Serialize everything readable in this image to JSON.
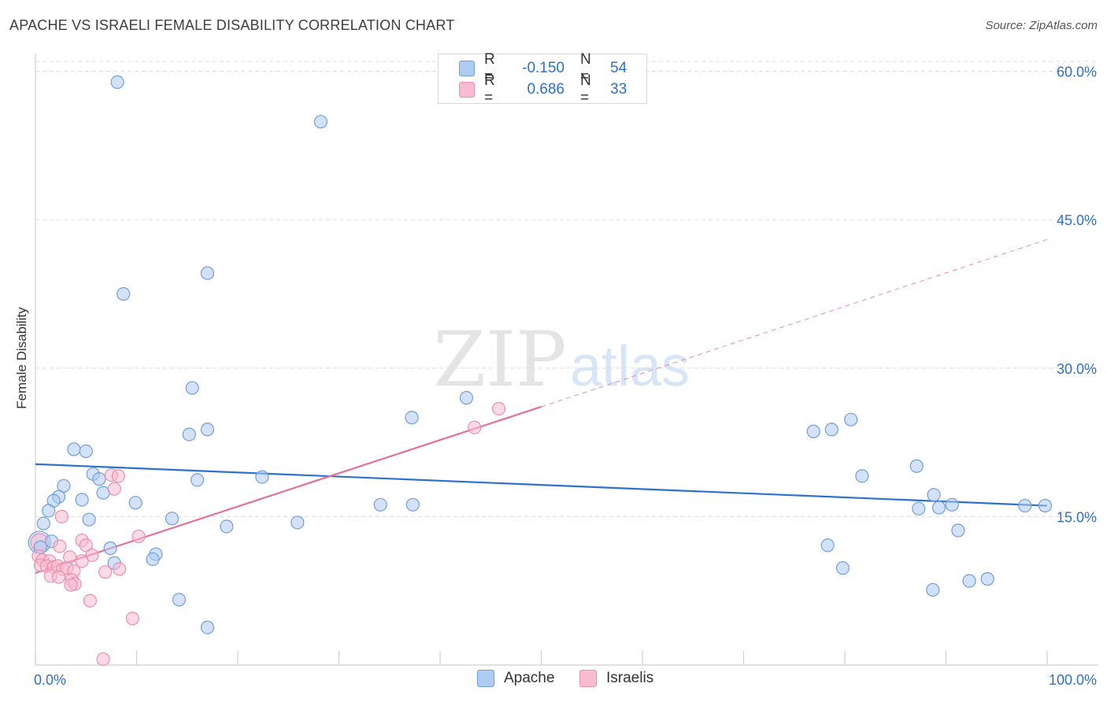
{
  "header": {
    "title": "APACHE VS ISRAELI FEMALE DISABILITY CORRELATION CHART",
    "source": "Source: ZipAtlas.com"
  },
  "legend": {
    "apache": {
      "r_label": "R =",
      "r_value": "-0.150",
      "n_label": "N =",
      "n_value": "54"
    },
    "israeli": {
      "r_label": "R =",
      "r_value": "0.686",
      "n_label": "N =",
      "n_value": "33"
    }
  },
  "bottom_legend": {
    "apache": "Apache",
    "israelis": "Israelis"
  },
  "watermark": {
    "zip": "ZIP",
    "atlas": "atlas"
  },
  "colors": {
    "apache_fill": "#aecbf2",
    "apache_stroke": "#6f9fde",
    "apache_line": "#2b72cc",
    "israeli_fill": "#f7bcd0",
    "israeli_stroke": "#ec8fae",
    "israeli_line": "#e4709a",
    "axis_text": "#2e6fcc"
  },
  "chart_data": {
    "type": "scatter",
    "title": "APACHE VS ISRAELI FEMALE DISABILITY CORRELATION CHART",
    "xlabel": "",
    "ylabel": "Female Disability",
    "xlim": [
      0,
      100
    ],
    "ylim": [
      0,
      61
    ],
    "x_tick_labels": [
      "0.0%",
      "100.0%"
    ],
    "y_ticks": [
      15,
      30,
      45,
      60
    ],
    "y_tick_labels": [
      "15.0%",
      "30.0%",
      "45.0%",
      "60.0%"
    ],
    "grid": true,
    "legend_position": "top-center",
    "series": [
      {
        "name": "Apache",
        "r": -0.15,
        "n": 54,
        "trend": {
          "x0": 0,
          "y0": 20.3,
          "x1": 100,
          "y1": 16.1
        },
        "points": [
          [
            8.1,
            58.9
          ],
          [
            28.2,
            54.9
          ],
          [
            17.0,
            39.6
          ],
          [
            8.7,
            37.5
          ],
          [
            15.5,
            28.0
          ],
          [
            42.6,
            27.0
          ],
          [
            37.2,
            25.0
          ],
          [
            17.0,
            23.8
          ],
          [
            15.2,
            23.3
          ],
          [
            76.9,
            23.6
          ],
          [
            78.7,
            23.8
          ],
          [
            80.6,
            24.8
          ],
          [
            3.8,
            21.8
          ],
          [
            5.0,
            21.6
          ],
          [
            5.7,
            19.3
          ],
          [
            6.3,
            18.8
          ],
          [
            22.4,
            19.0
          ],
          [
            16.0,
            18.7
          ],
          [
            2.8,
            18.1
          ],
          [
            6.7,
            17.4
          ],
          [
            2.3,
            17.0
          ],
          [
            1.8,
            16.6
          ],
          [
            4.6,
            16.7
          ],
          [
            9.9,
            16.4
          ],
          [
            34.1,
            16.2
          ],
          [
            37.3,
            16.2
          ],
          [
            1.3,
            15.6
          ],
          [
            5.3,
            14.7
          ],
          [
            13.5,
            14.8
          ],
          [
            0.8,
            14.3
          ],
          [
            18.9,
            14.0
          ],
          [
            25.9,
            14.4
          ],
          [
            1.6,
            12.5
          ],
          [
            7.4,
            11.8
          ],
          [
            0.5,
            11.9
          ],
          [
            11.9,
            11.2
          ],
          [
            7.8,
            10.3
          ],
          [
            11.6,
            10.7
          ],
          [
            81.7,
            19.1
          ],
          [
            87.1,
            20.1
          ],
          [
            88.8,
            17.2
          ],
          [
            90.6,
            16.2
          ],
          [
            87.3,
            15.8
          ],
          [
            89.3,
            15.9
          ],
          [
            97.8,
            16.1
          ],
          [
            99.8,
            16.1
          ],
          [
            91.2,
            13.6
          ],
          [
            78.3,
            12.1
          ],
          [
            79.8,
            9.8
          ],
          [
            88.7,
            7.6
          ],
          [
            92.3,
            8.5
          ],
          [
            94.1,
            8.7
          ],
          [
            14.2,
            6.6
          ],
          [
            17.0,
            3.8
          ]
        ]
      },
      {
        "name": "Israelis",
        "r": 0.686,
        "n": 33,
        "trend": {
          "x0": 0,
          "y0": 9.3,
          "x1": 50,
          "y1": 26.1
        },
        "trend_extension": {
          "x0": 50,
          "y0": 26.1,
          "x1": 100,
          "y1": 43.0
        },
        "points": [
          [
            45.8,
            25.9
          ],
          [
            43.4,
            24.0
          ],
          [
            7.5,
            19.2
          ],
          [
            8.2,
            19.1
          ],
          [
            7.8,
            17.8
          ],
          [
            2.6,
            15.0
          ],
          [
            10.2,
            13.0
          ],
          [
            4.6,
            12.6
          ],
          [
            5.0,
            12.1
          ],
          [
            2.4,
            12.0
          ],
          [
            0.3,
            11.0
          ],
          [
            0.7,
            10.6
          ],
          [
            5.6,
            11.1
          ],
          [
            1.4,
            10.5
          ],
          [
            3.4,
            10.9
          ],
          [
            4.6,
            10.5
          ],
          [
            0.5,
            10.1
          ],
          [
            1.1,
            10.0
          ],
          [
            1.8,
            9.9
          ],
          [
            2.2,
            10.0
          ],
          [
            2.7,
            9.7
          ],
          [
            3.1,
            9.8
          ],
          [
            3.8,
            9.5
          ],
          [
            8.3,
            9.7
          ],
          [
            6.9,
            9.4
          ],
          [
            1.5,
            9.0
          ],
          [
            2.3,
            8.9
          ],
          [
            3.6,
            8.6
          ],
          [
            3.9,
            8.2
          ],
          [
            3.5,
            8.1
          ],
          [
            5.4,
            6.5
          ],
          [
            9.6,
            4.7
          ],
          [
            6.7,
            0.6
          ]
        ]
      }
    ]
  }
}
